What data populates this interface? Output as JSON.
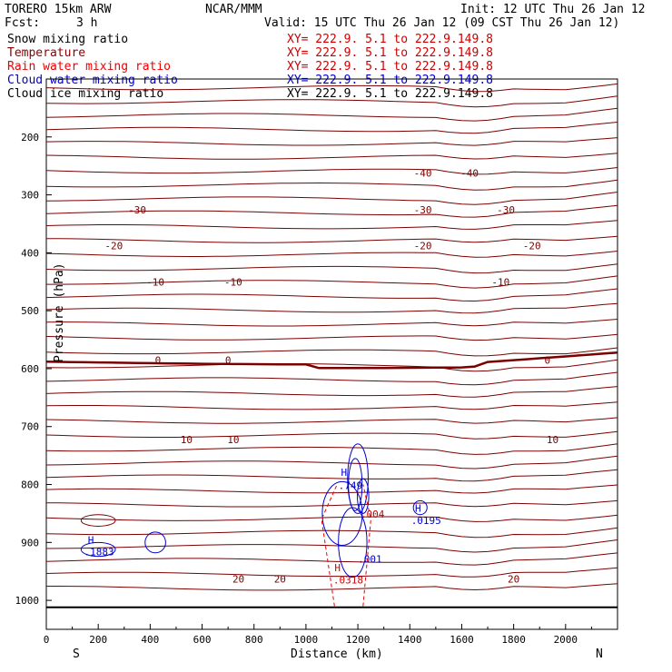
{
  "header": {
    "model": "TORERO  15km ARW",
    "center": "NCAR/MMM",
    "init": "Init: 12 UTC Thu 26 Jan 12",
    "fcst_label": "Fcst:",
    "fcst_value": "3 h",
    "valid": "Valid: 15 UTC Thu 26 Jan 12 (09 CST Thu 26 Jan 12)"
  },
  "legend": [
    {
      "label": "Snow mixing ratio",
      "xy": "XY= 222.9.  5.1 to 222.9.149.8",
      "color": "#000000",
      "xy_color": "#cc0000"
    },
    {
      "label": "Temperature",
      "xy": "XY= 222.9.  5.1 to 222.9.149.8",
      "color": "#8b0000",
      "xy_color": "#cc0000"
    },
    {
      "label": "Rain water mixing ratio",
      "xy": "XY= 222.9.  5.1 to 222.9.149.8",
      "color": "#ee0000",
      "xy_color": "#cc0000"
    },
    {
      "label": "Cloud water mixing ratio",
      "xy": "XY= 222.9.  5.1 to 222.9.149.8",
      "color": "#0000cc",
      "xy_color": "#0000cc"
    },
    {
      "label": "Cloud ice mixing ratio",
      "xy": "XY= 222.9.  5.1 to 222.9.149.8",
      "color": "#000000",
      "xy_color": "#000000"
    }
  ],
  "chart_data": {
    "type": "line",
    "title": "Vertical cross section",
    "xlabel": "Distance (km)",
    "ylabel": "Pressure (hPa)",
    "xlim": [
      0,
      2200
    ],
    "ylim": [
      1050,
      100
    ],
    "x_ticks": [
      "0",
      "200",
      "400",
      "600",
      "800",
      "1000",
      "1200",
      "1400",
      "1600",
      "1800",
      "2000"
    ],
    "x_tick_values": [
      0,
      200,
      400,
      600,
      800,
      1000,
      1200,
      1400,
      1600,
      1800,
      2000
    ],
    "y_ticks": [
      "200",
      "300",
      "400",
      "500",
      "600",
      "700",
      "800",
      "900",
      "1000"
    ],
    "y_tick_values": [
      200,
      300,
      400,
      500,
      600,
      700,
      800,
      900,
      1000
    ],
    "x_end_labels": {
      "left": "S",
      "right": "N"
    },
    "temperature_contours": [
      {
        "level": -40,
        "labels": [
          "-40",
          "-40"
        ],
        "label_x": [
          1450,
          1630
        ]
      },
      {
        "level": -30,
        "labels": [
          "-30",
          "-30",
          "-30"
        ],
        "label_x": [
          350,
          1450,
          1770
        ]
      },
      {
        "level": -20,
        "labels": [
          "-20",
          "-20",
          "-20"
        ],
        "label_x": [
          260,
          1450,
          1870
        ]
      },
      {
        "level": -10,
        "labels": [
          "-10",
          "-10",
          "-10"
        ],
        "label_x": [
          420,
          720,
          1750
        ]
      },
      {
        "level": 0,
        "labels": [
          "0",
          "0",
          "0"
        ],
        "label_x": [
          430,
          700,
          1930
        ]
      },
      {
        "level": 10,
        "labels": [
          "10",
          "10",
          "10"
        ],
        "label_x": [
          540,
          720,
          1950
        ]
      },
      {
        "level": 20,
        "labels": [
          "20",
          "20",
          "20"
        ],
        "label_x": [
          740,
          900,
          1800
        ]
      }
    ],
    "annotations": [
      {
        "text": "H",
        "x": 1135,
        "p": 785,
        "color": "#0000cc"
      },
      {
        "text": ".749",
        "x": 1125,
        "p": 808,
        "color": "#0000cc"
      },
      {
        "text": ".004",
        "x": 1210,
        "p": 857,
        "color": "#cc0000"
      },
      {
        "text": ".001",
        "x": 1200,
        "p": 935,
        "color": "#0000cc"
      },
      {
        "text": "H",
        "x": 1110,
        "p": 950,
        "color": "#cc0000"
      },
      {
        "text": ".0318",
        "x": 1105,
        "p": 971,
        "color": "#cc0000"
      },
      {
        "text": "H",
        "x": 1420,
        "p": 847,
        "color": "#0000cc"
      },
      {
        "text": ".0195",
        "x": 1405,
        "p": 868,
        "color": "#0000cc"
      },
      {
        "text": "H",
        "x": 160,
        "p": 902,
        "color": "#0000cc"
      },
      {
        "text": ".1883",
        "x": 145,
        "p": 922,
        "color": "#0000cc"
      }
    ]
  }
}
